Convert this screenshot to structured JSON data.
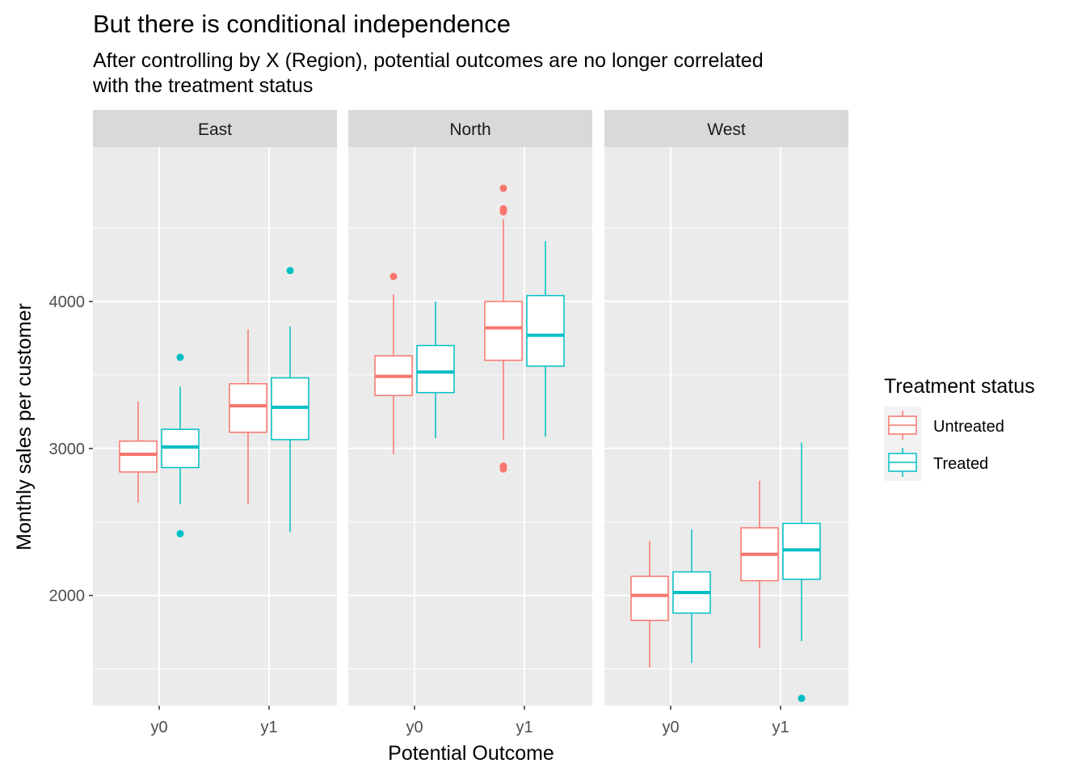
{
  "chart_data": {
    "type": "boxplot",
    "title": "But there is conditional independence",
    "subtitle": "After controlling by X (Region), potential outcomes are no longer correlated\nwith the treatment status",
    "xlabel": "Potential Outcome",
    "ylabel": "Monthly sales per customer",
    "ylim": [
      1250,
      5050
    ],
    "yticks": [
      2000,
      3000,
      4000
    ],
    "categories": [
      "y0",
      "y1"
    ],
    "legend": {
      "title": "Treatment status",
      "position": "right",
      "entries": [
        {
          "name": "Untreated",
          "color": "#F8766D"
        },
        {
          "name": "Treated",
          "color": "#00BFC4"
        }
      ]
    },
    "facets": [
      {
        "name": "East",
        "groups": [
          {
            "x": "y0",
            "series": "Untreated",
            "whisker_low": 2630,
            "q1": 2840,
            "median": 2960,
            "q3": 3050,
            "whisker_high": 3320,
            "outliers": []
          },
          {
            "x": "y0",
            "series": "Treated",
            "whisker_low": 2620,
            "q1": 2870,
            "median": 3010,
            "q3": 3130,
            "whisker_high": 3420,
            "outliers": [
              3620,
              2420
            ]
          },
          {
            "x": "y1",
            "series": "Untreated",
            "whisker_low": 2620,
            "q1": 3110,
            "median": 3290,
            "q3": 3440,
            "whisker_high": 3810,
            "outliers": []
          },
          {
            "x": "y1",
            "series": "Treated",
            "whisker_low": 2430,
            "q1": 3060,
            "median": 3280,
            "q3": 3480,
            "whisker_high": 3830,
            "outliers": [
              4210
            ]
          }
        ]
      },
      {
        "name": "North",
        "groups": [
          {
            "x": "y0",
            "series": "Untreated",
            "whisker_low": 2960,
            "q1": 3360,
            "median": 3490,
            "q3": 3630,
            "whisker_high": 4050,
            "outliers": [
              4170
            ]
          },
          {
            "x": "y0",
            "series": "Treated",
            "whisker_low": 3070,
            "q1": 3380,
            "median": 3520,
            "q3": 3700,
            "whisker_high": 4000,
            "outliers": []
          },
          {
            "x": "y1",
            "series": "Untreated",
            "whisker_low": 3060,
            "q1": 3600,
            "median": 3820,
            "q3": 4000,
            "whisker_high": 4560,
            "outliers": [
              4770,
              4630,
              4610,
              2880,
              2860
            ]
          },
          {
            "x": "y1",
            "series": "Treated",
            "whisker_low": 3080,
            "q1": 3560,
            "median": 3770,
            "q3": 4040,
            "whisker_high": 4410,
            "outliers": []
          }
        ]
      },
      {
        "name": "West",
        "groups": [
          {
            "x": "y0",
            "series": "Untreated",
            "whisker_low": 1510,
            "q1": 1830,
            "median": 2000,
            "q3": 2130,
            "whisker_high": 2370,
            "outliers": []
          },
          {
            "x": "y0",
            "series": "Treated",
            "whisker_low": 1540,
            "q1": 1880,
            "median": 2020,
            "q3": 2160,
            "whisker_high": 2450,
            "outliers": []
          },
          {
            "x": "y1",
            "series": "Untreated",
            "whisker_low": 1640,
            "q1": 2100,
            "median": 2280,
            "q3": 2460,
            "whisker_high": 2780,
            "outliers": []
          },
          {
            "x": "y1",
            "series": "Treated",
            "whisker_low": 1690,
            "q1": 2110,
            "median": 2310,
            "q3": 2490,
            "whisker_high": 3040,
            "outliers": [
              1300
            ]
          }
        ]
      }
    ]
  }
}
